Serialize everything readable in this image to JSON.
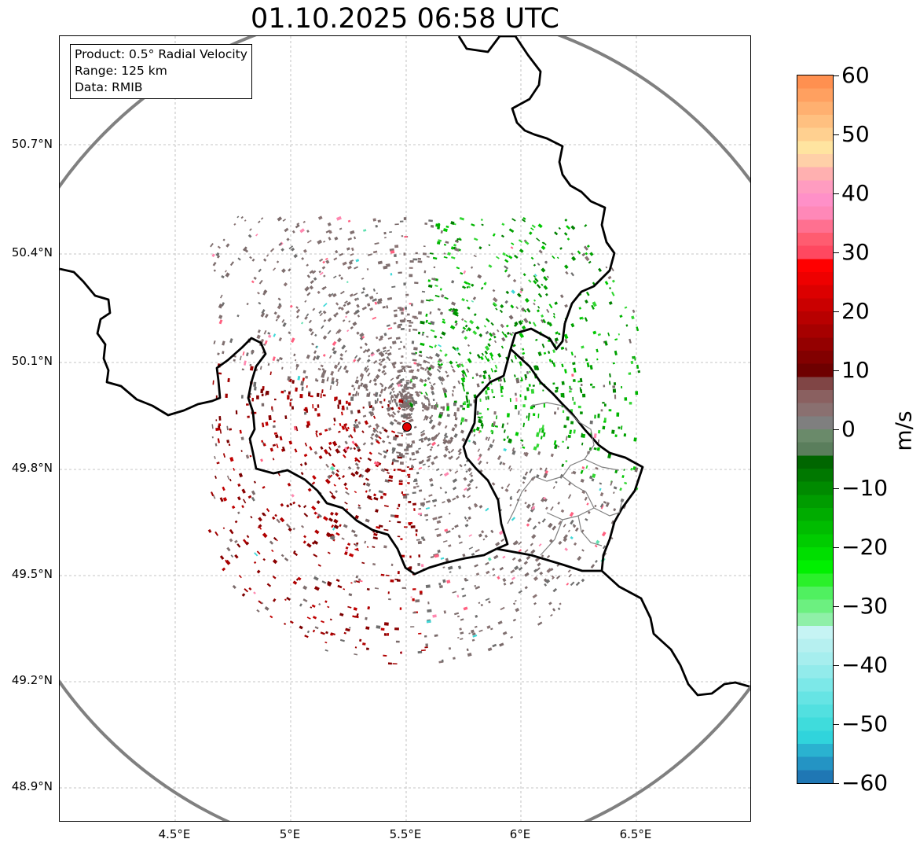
{
  "title": "01.10.2025 06:58 UTC",
  "info_box": {
    "product": "Product: 0.5° Radial Velocity",
    "range": "Range: 125 km",
    "data": "Data: RMIB"
  },
  "axes": {
    "lat_ticks": [
      {
        "value": 50.7,
        "label": "50.7°N"
      },
      {
        "value": 50.4,
        "label": "50.4°N"
      },
      {
        "value": 50.1,
        "label": "50.1°N"
      },
      {
        "value": 49.8,
        "label": "49.8°N"
      },
      {
        "value": 49.5,
        "label": "49.5°N"
      },
      {
        "value": 49.2,
        "label": "49.2°N"
      },
      {
        "value": 48.9,
        "label": "48.9°N"
      }
    ],
    "lon_ticks": [
      {
        "value": 4.5,
        "label": "4.5°E"
      },
      {
        "value": 5.0,
        "label": "5°E"
      },
      {
        "value": 5.5,
        "label": "5.5°E"
      },
      {
        "value": 6.0,
        "label": "6°E"
      },
      {
        "value": 6.5,
        "label": "6.5°E"
      }
    ],
    "lon_range": [
      4.0,
      7.0
    ],
    "lat_range": [
      48.81,
      50.99
    ],
    "grid": true
  },
  "radar": {
    "site": {
      "lon": 5.505,
      "lat": 49.914
    },
    "range_km": 125,
    "marker_color": "#e00000"
  },
  "colorbar": {
    "unit": "m/s",
    "min": -60,
    "max": 60,
    "ticks": [
      {
        "value": 60,
        "label": "60"
      },
      {
        "value": 50,
        "label": "50"
      },
      {
        "value": 40,
        "label": "40"
      },
      {
        "value": 30,
        "label": "30"
      },
      {
        "value": 20,
        "label": "20"
      },
      {
        "value": 10,
        "label": "10"
      },
      {
        "value": 0,
        "label": "0"
      },
      {
        "value": -10,
        "label": "−10"
      },
      {
        "value": -20,
        "label": "−20"
      },
      {
        "value": -30,
        "label": "−30"
      },
      {
        "value": -40,
        "label": "−40"
      },
      {
        "value": -50,
        "label": "−50"
      },
      {
        "value": -60,
        "label": "−60"
      }
    ],
    "colors": [
      "#1f77b4",
      "#2494c4",
      "#2ab2d0",
      "#30d4dc",
      "#3fdcdc",
      "#52e0e0",
      "#66e4e4",
      "#7ce8e8",
      "#92ebeb",
      "#a6eeee",
      "#b6f0f0",
      "#c6f4f4",
      "#8ff0a8",
      "#6cf080",
      "#50f060",
      "#2af02a",
      "#00f000",
      "#00de00",
      "#00cc00",
      "#00bc00",
      "#00ac00",
      "#009c00",
      "#008a00",
      "#007800",
      "#006600",
      "#5a7e5c",
      "#6a8a6a",
      "#7f7f7f",
      "#8a7070",
      "#8a6060",
      "#804545",
      "#6e0000",
      "#820000",
      "#940000",
      "#a60000",
      "#b80000",
      "#ca0000",
      "#dc0000",
      "#ee0000",
      "#ff0000",
      "#ff4860",
      "#ff5c70",
      "#ff7090",
      "#ff88b8",
      "#ff90c8",
      "#ff9cc0",
      "#ffb0b0",
      "#ffd0a8",
      "#ffe4a0",
      "#ffd090",
      "#ffc080",
      "#ffb070",
      "#ffa060",
      "#ff9050"
    ]
  }
}
